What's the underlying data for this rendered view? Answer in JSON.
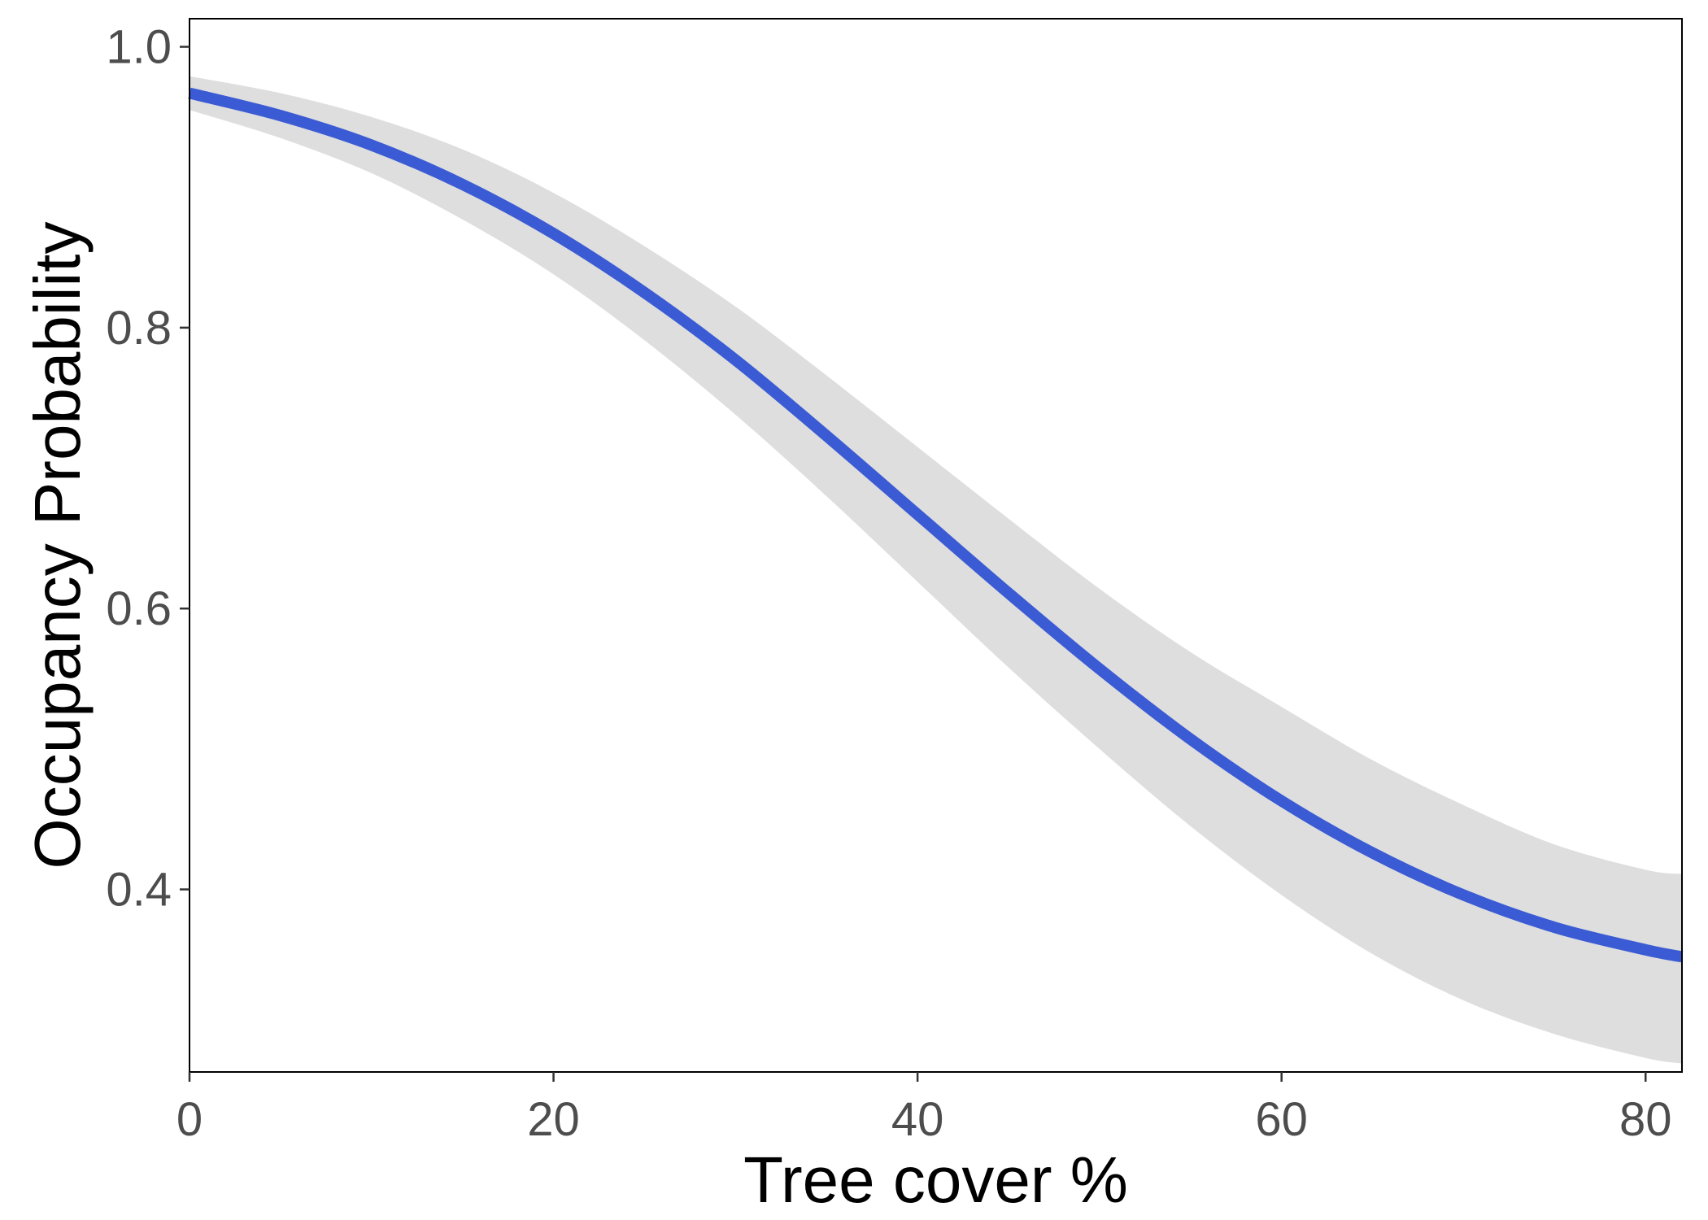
{
  "chart_data": {
    "type": "line",
    "title": "",
    "xlabel": "Tree cover %",
    "ylabel": "Occupancy Probability",
    "xlim": [
      0,
      82
    ],
    "ylim": [
      0.27,
      1.02
    ],
    "xticks": [
      {
        "value": 0,
        "label": "0"
      },
      {
        "value": 20,
        "label": "20"
      },
      {
        "value": 40,
        "label": "40"
      },
      {
        "value": 60,
        "label": "60"
      },
      {
        "value": 80,
        "label": "80"
      }
    ],
    "yticks": [
      {
        "value": 0.4,
        "label": "0.4"
      },
      {
        "value": 0.6,
        "label": "0.6"
      },
      {
        "value": 0.8,
        "label": "0.8"
      },
      {
        "value": 1.0,
        "label": "1.0"
      }
    ],
    "grid": false,
    "legend": "none",
    "series": [
      {
        "x": [
          0,
          5,
          10,
          15,
          20,
          25,
          30,
          35,
          40,
          45,
          50,
          55,
          60,
          65,
          70,
          75,
          80,
          82
        ],
        "y": [
          0.967,
          0.951,
          0.93,
          0.902,
          0.867,
          0.825,
          0.777,
          0.723,
          0.667,
          0.611,
          0.557,
          0.507,
          0.463,
          0.426,
          0.396,
          0.373,
          0.357,
          0.352
        ],
        "lower": [
          0.955,
          0.935,
          0.91,
          0.877,
          0.838,
          0.791,
          0.738,
          0.68,
          0.619,
          0.558,
          0.5,
          0.445,
          0.396,
          0.354,
          0.321,
          0.297,
          0.28,
          0.276
        ],
        "upper": [
          0.979,
          0.967,
          0.95,
          0.927,
          0.896,
          0.858,
          0.815,
          0.766,
          0.715,
          0.664,
          0.614,
          0.569,
          0.53,
          0.492,
          0.46,
          0.432,
          0.414,
          0.411
        ],
        "color": "#3b5bd4",
        "ribbon_color": "#dedede"
      }
    ]
  },
  "colors": {
    "line": "#3b5bd4",
    "ribbon": "#dedede",
    "axis": "#000000",
    "tick_text": "#4d4d4d"
  }
}
